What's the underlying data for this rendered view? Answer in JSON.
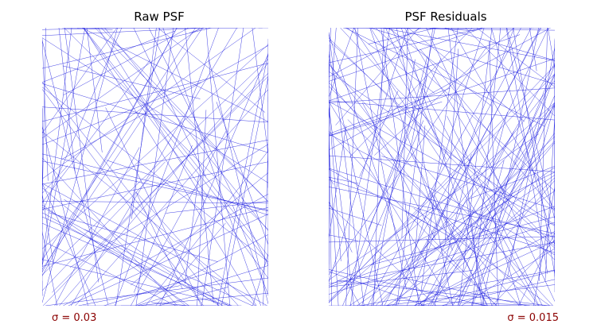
{
  "chart_data": [
    {
      "type": "line",
      "title": "Raw PSF",
      "annotation": "σ = 0.03",
      "line_count": 150,
      "line_color": "#2020e0",
      "annotation_color": "#8b0000",
      "grid": false,
      "axes_visible": false
    },
    {
      "type": "line",
      "title": "PSF Residuals",
      "annotation": "σ = 0.015",
      "line_count": 230,
      "line_color": "#2020e0",
      "annotation_color": "#8b0000",
      "grid": false,
      "axes_visible": false
    }
  ]
}
